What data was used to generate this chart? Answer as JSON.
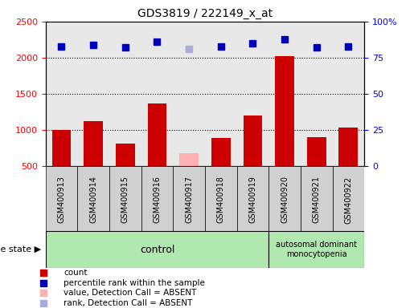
{
  "title": "GDS3819 / 222149_x_at",
  "samples": [
    "GSM400913",
    "GSM400914",
    "GSM400915",
    "GSM400916",
    "GSM400917",
    "GSM400918",
    "GSM400919",
    "GSM400920",
    "GSM400921",
    "GSM400922"
  ],
  "counts": [
    1000,
    1120,
    810,
    1370,
    680,
    890,
    1200,
    2020,
    900,
    1040
  ],
  "percentiles": [
    83,
    84,
    82,
    86,
    81,
    83,
    85,
    88,
    82,
    83
  ],
  "absent_mask": [
    false,
    false,
    false,
    false,
    true,
    false,
    false,
    false,
    false,
    false
  ],
  "bar_color_present": "#cc0000",
  "bar_color_absent": "#ffb0b0",
  "dot_color_present": "#0000bb",
  "dot_color_absent": "#aaaadd",
  "ylim_left": [
    500,
    2500
  ],
  "ylim_right": [
    0,
    100
  ],
  "yticks_left": [
    500,
    1000,
    1500,
    2000,
    2500
  ],
  "yticks_right": [
    0,
    25,
    50,
    75,
    100
  ],
  "yticklabels_right": [
    "0",
    "25",
    "50",
    "75",
    "100%"
  ],
  "n_control": 7,
  "group_label_control": "control",
  "group_label_disease": "autosomal dominant\nmonocytopenia",
  "legend_items": [
    {
      "label": "count",
      "color": "#cc0000",
      "marker": "s"
    },
    {
      "label": "percentile rank within the sample",
      "color": "#0000bb",
      "marker": "s"
    },
    {
      "label": "value, Detection Call = ABSENT",
      "color": "#ffb0b0",
      "marker": "s"
    },
    {
      "label": "rank, Detection Call = ABSENT",
      "color": "#aaaadd",
      "marker": "s"
    }
  ],
  "disease_state_label": "disease state",
  "background_color": "#ffffff",
  "plot_bg_color": "#e8e8e8",
  "label_bg_color": "#d0d0d0",
  "group_bg_color": "#b0e8b0"
}
